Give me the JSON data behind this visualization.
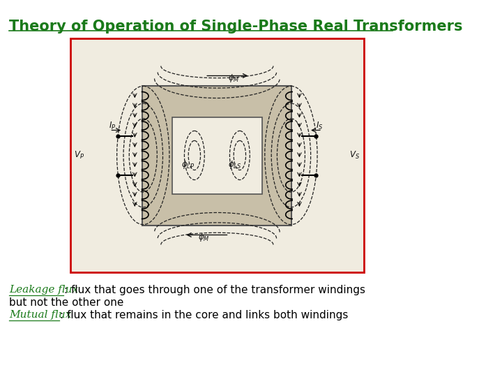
{
  "title": "Theory of Operation of Single-Phase Real Transformers",
  "title_color": "#1a7a1a",
  "title_fontsize": 15,
  "bg_color": "#ffffff",
  "leakage_label": "Leakage flux",
  "leakage_rest_line1": ": flux that goes through one of the transformer windings",
  "leakage_rest_line2": "but not the other one",
  "mutual_label": "Mutual flux",
  "mutual_rest": ": flux that remains in the core and links both windings",
  "text_color": "#1a7a1a",
  "body_text_color": "#000000",
  "text_fontsize": 11,
  "box_border_color": "#cc0000",
  "diagram_bg": "#f0ece0"
}
